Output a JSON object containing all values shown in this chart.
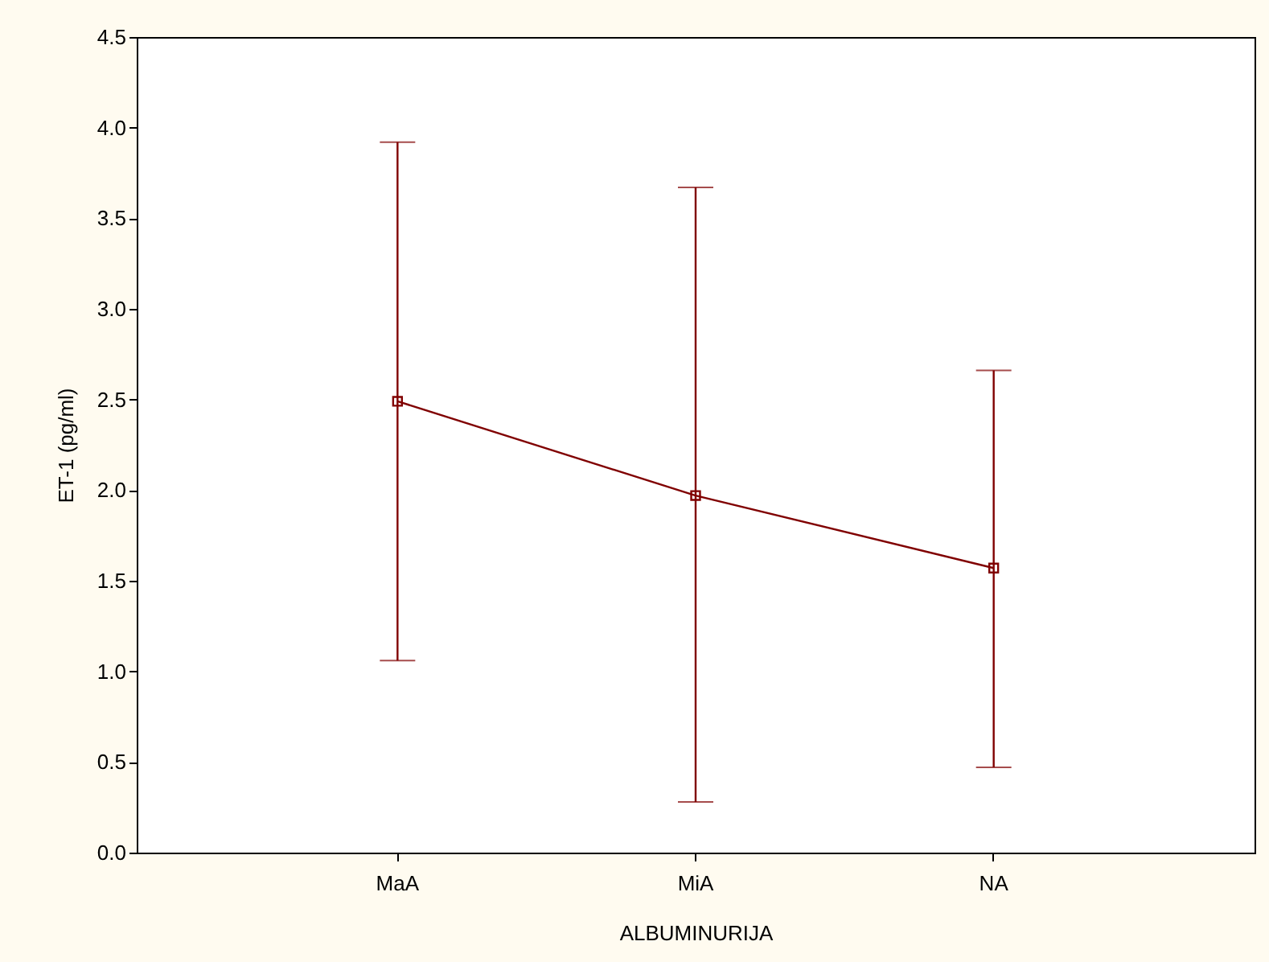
{
  "chart_data": {
    "type": "line",
    "xlabel": "ALBUMINURIJA",
    "ylabel": "ET-1 (pg/ml)",
    "categories": [
      "MaA",
      "MiA",
      "NA"
    ],
    "series": [
      {
        "color": "#800000",
        "values": [
          2.49,
          1.97,
          1.57
        ],
        "errors": [
          [
            1.06,
            3.92
          ],
          [
            0.28,
            3.67
          ],
          [
            0.47,
            2.66
          ]
        ]
      }
    ],
    "ylim": [
      0,
      4.5
    ],
    "yticks": [
      {
        "value": 0,
        "label": "0.0"
      },
      0.5,
      {
        "value": 1,
        "label": "1.0"
      },
      1.5,
      {
        "value": 2,
        "label": "2.0"
      },
      2.5,
      {
        "value": 3,
        "label": "3.0"
      },
      3.5,
      {
        "value": 4,
        "label": "4.0"
      },
      4.5
    ],
    "marker": "square"
  }
}
